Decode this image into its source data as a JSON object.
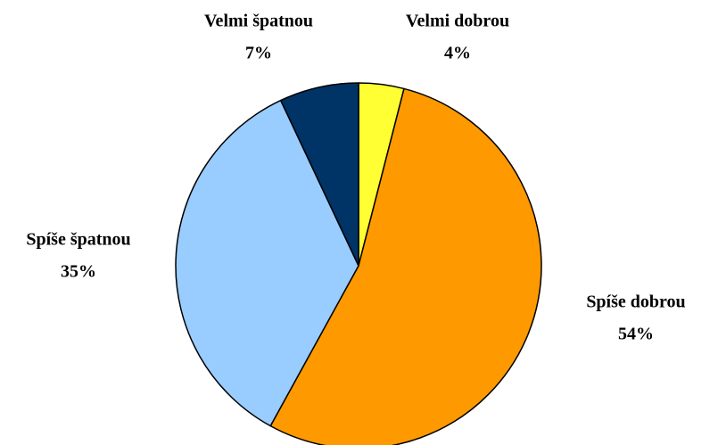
{
  "chart_data": {
    "type": "pie",
    "categories": [
      "Velmi dobrou",
      "Spíše dobrou",
      "Spíše špatnou",
      "Velmi špatnou"
    ],
    "values": [
      4,
      54,
      35,
      7
    ],
    "value_labels": [
      "4%",
      "54%",
      "35%",
      "7%"
    ],
    "colors": [
      "#ffff33",
      "#ff9900",
      "#99ccff",
      "#003366"
    ]
  }
}
